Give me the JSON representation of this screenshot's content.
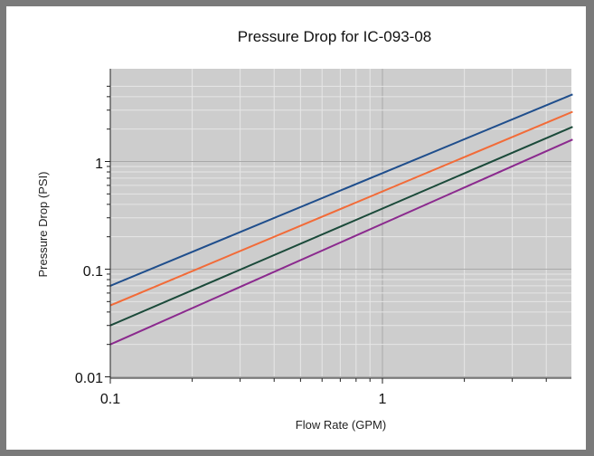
{
  "chart_data": {
    "type": "line",
    "title": "Pressure Drop for IC-093-08",
    "xlabel": "Flow Rate (GPM)",
    "ylabel": "Pressure Drop (PSI)",
    "xscale": "log",
    "yscale": "log",
    "xlim": [
      0.1,
      5
    ],
    "ylim": [
      0.01,
      5
    ],
    "x_tick_labels": [
      "0.1",
      "1"
    ],
    "y_tick_labels": [
      "0.01",
      "0.1",
      "1"
    ],
    "grid": true,
    "legend": "none",
    "plot_background": "#cdcdcd",
    "series": [
      {
        "color": "#1f4e8c",
        "points": [
          [
            0.1,
            0.07
          ],
          [
            5,
            4.2
          ]
        ]
      },
      {
        "color": "#f26b38",
        "points": [
          [
            0.1,
            0.046
          ],
          [
            5,
            2.9
          ]
        ]
      },
      {
        "color": "#1b4a3a",
        "points": [
          [
            0.1,
            0.03
          ],
          [
            5,
            2.1
          ]
        ]
      },
      {
        "color": "#8b2a8e",
        "points": [
          [
            0.1,
            0.02
          ],
          [
            5,
            1.6
          ]
        ]
      }
    ]
  }
}
